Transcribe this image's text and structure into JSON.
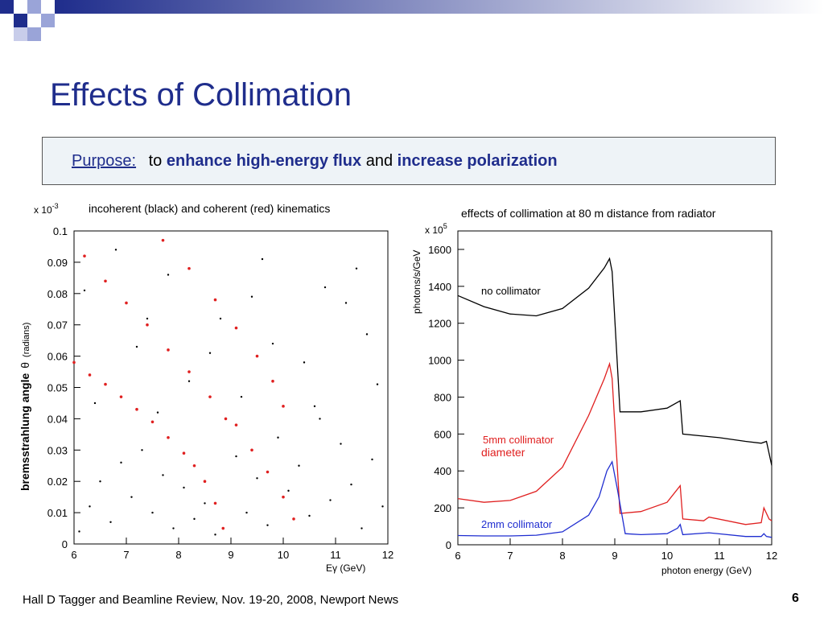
{
  "slide": {
    "title": "Effects of Collimation",
    "purpose_label": "Purpose:",
    "purpose_to": "to",
    "purpose_bold1": "enhance high-energy flux",
    "purpose_and": "and",
    "purpose_bold2": "increase polarization",
    "footer": "Hall D Tagger and Beamline Review, Nov. 19-20, 2008, Newport News",
    "page_number": "6",
    "accent_color": "#1f2d8c"
  },
  "chart_data": [
    {
      "type": "scatter",
      "caption": "incoherent (black) and coherent (red) kinematics",
      "multiplier": "x 10",
      "multiplier_exp": "-3",
      "ylabel_main": "bremsstrahlung angle",
      "ylabel_sym": "θ",
      "ylabel_unit": "(radians)",
      "xlabel": "Eγ (GeV)",
      "xlim": [
        6,
        12
      ],
      "ylim": [
        0,
        0.1
      ],
      "xticks": [
        "6",
        "7",
        "8",
        "9",
        "10",
        "11",
        "12"
      ],
      "yticks": [
        "0",
        "0.01",
        "0.02",
        "0.03",
        "0.04",
        "0.05",
        "0.06",
        "0.07",
        "0.08",
        "0.09",
        "0.1"
      ],
      "grid": false,
      "series": [
        {
          "color": "#000000",
          "note": "incoherent",
          "points": [
            [
              6.1,
              0.004
            ],
            [
              6.3,
              0.012
            ],
            [
              6.5,
              0.02
            ],
            [
              6.7,
              0.007
            ],
            [
              6.9,
              0.026
            ],
            [
              7.1,
              0.015
            ],
            [
              7.3,
              0.03
            ],
            [
              7.5,
              0.01
            ],
            [
              7.7,
              0.022
            ],
            [
              7.9,
              0.005
            ],
            [
              8.1,
              0.018
            ],
            [
              8.3,
              0.008
            ],
            [
              8.5,
              0.013
            ],
            [
              8.7,
              0.003
            ],
            [
              9.1,
              0.028
            ],
            [
              9.3,
              0.01
            ],
            [
              9.5,
              0.021
            ],
            [
              9.7,
              0.006
            ],
            [
              9.9,
              0.034
            ],
            [
              10.1,
              0.017
            ],
            [
              10.3,
              0.025
            ],
            [
              10.5,
              0.009
            ],
            [
              10.7,
              0.04
            ],
            [
              10.9,
              0.014
            ],
            [
              11.1,
              0.032
            ],
            [
              11.3,
              0.019
            ],
            [
              11.5,
              0.005
            ],
            [
              11.7,
              0.027
            ],
            [
              11.9,
              0.012
            ],
            [
              6.4,
              0.045
            ],
            [
              7.2,
              0.063
            ],
            [
              7.8,
              0.086
            ],
            [
              8.8,
              0.072
            ],
            [
              9.6,
              0.091
            ],
            [
              10.4,
              0.058
            ],
            [
              11.2,
              0.077
            ],
            [
              11.6,
              0.067
            ],
            [
              6.8,
              0.094
            ],
            [
              8.2,
              0.052
            ],
            [
              9.2,
              0.047
            ],
            [
              10.8,
              0.082
            ],
            [
              11.8,
              0.051
            ],
            [
              6.2,
              0.081
            ],
            [
              7.4,
              0.072
            ],
            [
              9.8,
              0.064
            ],
            [
              10.6,
              0.044
            ],
            [
              11.4,
              0.088
            ],
            [
              8.6,
              0.061
            ],
            [
              7.6,
              0.042
            ],
            [
              9.4,
              0.079
            ]
          ]
        },
        {
          "color": "#e02020",
          "note": "coherent primary",
          "points": [
            [
              6.0,
              0.058
            ],
            [
              6.3,
              0.054
            ],
            [
              6.6,
              0.051
            ],
            [
              6.9,
              0.047
            ],
            [
              7.2,
              0.043
            ],
            [
              7.5,
              0.039
            ],
            [
              7.8,
              0.034
            ],
            [
              8.1,
              0.029
            ],
            [
              8.3,
              0.025
            ],
            [
              8.5,
              0.02
            ],
            [
              8.7,
              0.013
            ],
            [
              8.85,
              0.005
            ]
          ]
        },
        {
          "color": "#e02020",
          "note": "coherent secondary",
          "points": [
            [
              6.2,
              0.092
            ],
            [
              6.6,
              0.084
            ],
            [
              7.0,
              0.077
            ],
            [
              7.4,
              0.07
            ],
            [
              7.8,
              0.062
            ],
            [
              8.2,
              0.055
            ],
            [
              8.6,
              0.047
            ],
            [
              8.9,
              0.04
            ]
          ]
        },
        {
          "color": "#e02020",
          "note": "coherent tertiary",
          "points": [
            [
              7.7,
              0.097
            ],
            [
              8.2,
              0.088
            ],
            [
              8.7,
              0.078
            ],
            [
              9.1,
              0.069
            ],
            [
              9.5,
              0.06
            ],
            [
              9.8,
              0.052
            ],
            [
              10.0,
              0.044
            ]
          ]
        },
        {
          "color": "#e02020",
          "note": "coherent fourth",
          "points": [
            [
              9.1,
              0.038
            ],
            [
              9.4,
              0.03
            ],
            [
              9.7,
              0.023
            ],
            [
              10.0,
              0.015
            ],
            [
              10.2,
              0.008
            ]
          ]
        }
      ]
    },
    {
      "type": "line",
      "caption": "effects of collimation at 80 m distance from radiator",
      "multiplier": "x 10",
      "multiplier_exp": "5",
      "ylabel": "photons/s/GeV",
      "xlabel": "photon energy (GeV)",
      "xlim": [
        6,
        12
      ],
      "ylim": [
        0,
        1700
      ],
      "xticks": [
        "6",
        "7",
        "8",
        "9",
        "10",
        "11",
        "12"
      ],
      "yticks": [
        "0",
        "200",
        "400",
        "600",
        "800",
        "1000",
        "1200",
        "1400",
        "1600"
      ],
      "grid": false,
      "annotations": [
        {
          "text": "no collimator",
          "color": "#000000"
        },
        {
          "text": "5mm collimator",
          "color": "#e02020"
        },
        {
          "text": "diameter",
          "color": "#e02020"
        },
        {
          "text": "2mm collimator",
          "color": "#1f2dd0"
        }
      ],
      "series": [
        {
          "color": "#000000",
          "x": [
            6.0,
            6.5,
            7.0,
            7.5,
            8.0,
            8.5,
            8.8,
            8.9,
            8.95,
            9.1,
            9.5,
            10.0,
            10.25,
            10.3,
            11.0,
            11.5,
            11.8,
            11.9,
            12.0
          ],
          "y": [
            1350,
            1290,
            1250,
            1240,
            1280,
            1390,
            1500,
            1550,
            1480,
            720,
            720,
            740,
            780,
            600,
            580,
            560,
            550,
            560,
            430
          ]
        },
        {
          "color": "#e02020",
          "x": [
            6.0,
            6.5,
            7.0,
            7.5,
            8.0,
            8.5,
            8.8,
            8.9,
            8.95,
            9.1,
            9.5,
            10.0,
            10.25,
            10.3,
            10.7,
            10.8,
            11.5,
            11.8,
            11.85,
            11.95,
            12.0
          ],
          "y": [
            250,
            230,
            240,
            290,
            420,
            700,
            900,
            980,
            900,
            170,
            180,
            230,
            320,
            140,
            130,
            150,
            110,
            120,
            200,
            140,
            130
          ]
        },
        {
          "color": "#1f2dd0",
          "x": [
            6.0,
            6.5,
            7.0,
            7.5,
            8.0,
            8.5,
            8.7,
            8.85,
            8.95,
            9.05,
            9.2,
            9.5,
            10.0,
            10.2,
            10.25,
            10.3,
            10.8,
            11.5,
            11.8,
            11.85,
            11.9,
            12.0
          ],
          "y": [
            50,
            48,
            48,
            52,
            70,
            160,
            260,
            400,
            450,
            300,
            60,
            55,
            60,
            90,
            110,
            55,
            65,
            45,
            45,
            60,
            45,
            40
          ]
        }
      ]
    }
  ]
}
